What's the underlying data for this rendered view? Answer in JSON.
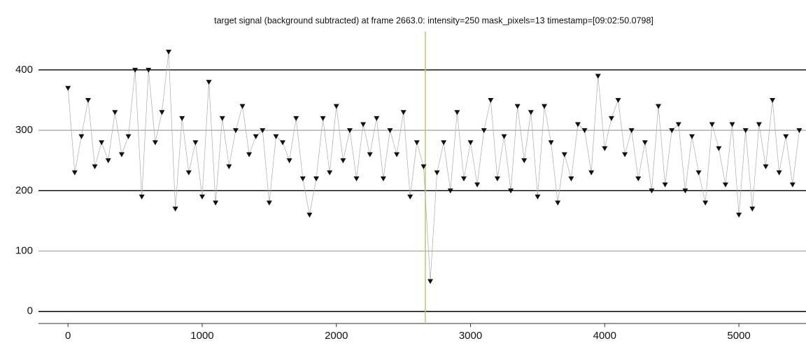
{
  "chart_data": {
    "type": "scatter",
    "title": "target signal (background subtracted) at frame 2663.0: intensity=250 mask_pixels=13 timestamp=[09:02:50.0798]",
    "cursor_x": 2663,
    "x": [
      0,
      50,
      100,
      150,
      200,
      250,
      300,
      350,
      400,
      450,
      500,
      550,
      600,
      650,
      700,
      750,
      800,
      850,
      900,
      950,
      1000,
      1050,
      1100,
      1150,
      1200,
      1250,
      1300,
      1350,
      1400,
      1450,
      1500,
      1550,
      1600,
      1650,
      1700,
      1750,
      1800,
      1850,
      1900,
      1950,
      2000,
      2050,
      2100,
      2150,
      2200,
      2250,
      2300,
      2350,
      2400,
      2450,
      2500,
      2550,
      2600,
      2650,
      2700,
      2750,
      2800,
      2850,
      2900,
      2950,
      3000,
      3050,
      3100,
      3150,
      3200,
      3250,
      3300,
      3350,
      3400,
      3450,
      3500,
      3550,
      3600,
      3650,
      3700,
      3750,
      3800,
      3850,
      3900,
      3950,
      4000,
      4050,
      4100,
      4150,
      4200,
      4250,
      4300,
      4350,
      4400,
      4450,
      4500,
      4550,
      4600,
      4650,
      4700,
      4750,
      4800,
      4850,
      4900,
      4950,
      5000,
      5050,
      5100,
      5150,
      5200,
      5250,
      5300,
      5350,
      5400,
      5450
    ],
    "series": [
      {
        "color": "#111111",
        "values": [
          370,
          230,
          290,
          350,
          240,
          280,
          250,
          330,
          260,
          290,
          400,
          190,
          400,
          280,
          330,
          430,
          170,
          320,
          230,
          280,
          190,
          380,
          180,
          320,
          240,
          300,
          340,
          260,
          290,
          300,
          180,
          290,
          280,
          250,
          320,
          220,
          160,
          220,
          320,
          230,
          340,
          250,
          300,
          220,
          310,
          260,
          320,
          220,
          300,
          260,
          330,
          190,
          280,
          240,
          50,
          230,
          280,
          200,
          330,
          220,
          280,
          210,
          300,
          350,
          220,
          290,
          200,
          340,
          250,
          330,
          190,
          340,
          280,
          180,
          260,
          220,
          310,
          300,
          230,
          390,
          270,
          320,
          350,
          260,
          300,
          220,
          280,
          200,
          340,
          210,
          300,
          310,
          200,
          290,
          230,
          180,
          310,
          270,
          210,
          310,
          160,
          300,
          170,
          310,
          240,
          350,
          230,
          290,
          210,
          300
        ]
      }
    ],
    "xlim": [
      -220,
      5500
    ],
    "ylim": [
      -20,
      452
    ],
    "xticks": [
      0,
      1000,
      2000,
      3000,
      4000,
      5000
    ],
    "yticks": [
      0,
      100,
      200,
      300,
      400
    ],
    "grid": true
  }
}
